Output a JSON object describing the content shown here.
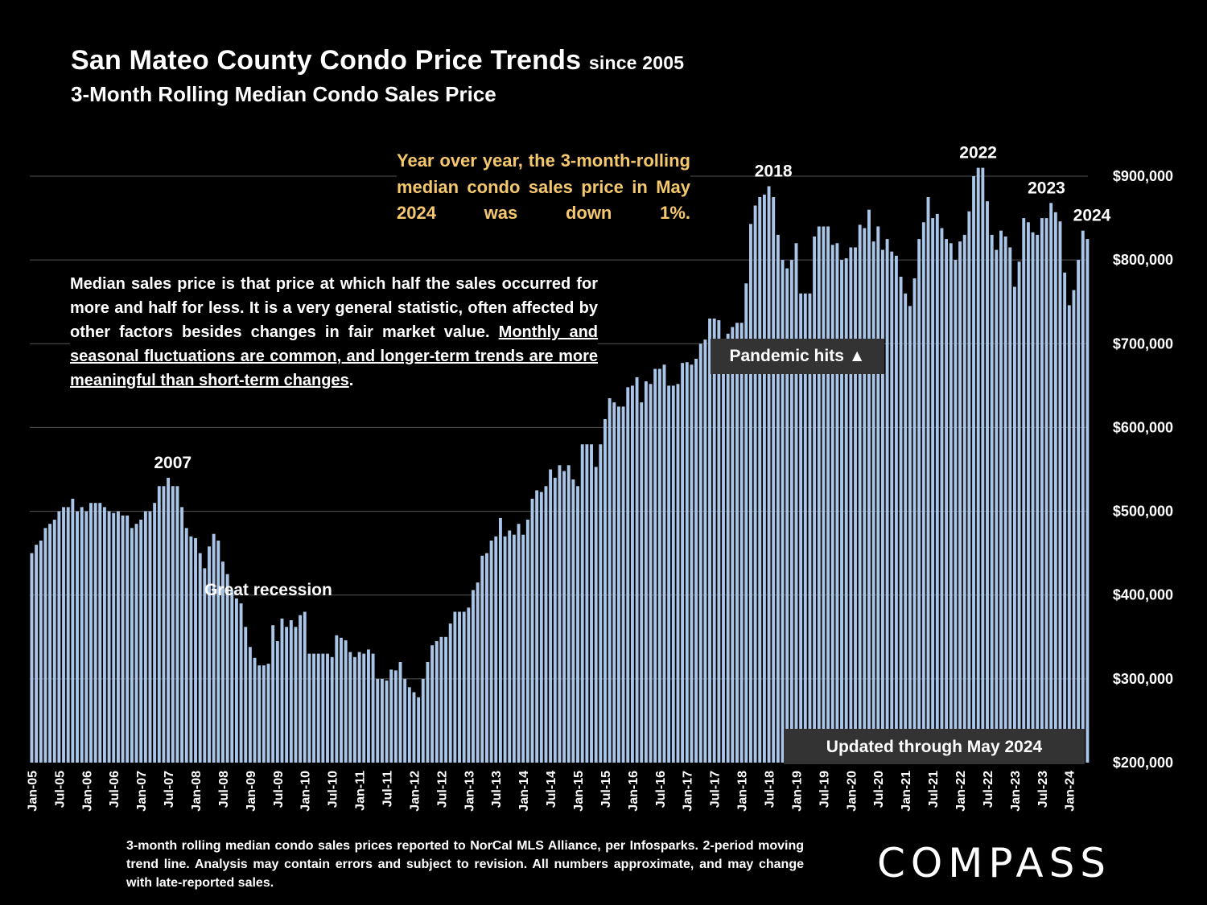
{
  "header": {
    "title": "San Mateo County Condo Price Trends",
    "title_suffix": "since 2005",
    "subtitle": "3-Month Rolling Median Condo Sales Price"
  },
  "notes": {
    "yoy": "Year over year, the 3-month-rolling median condo sales price in May 2024 was down 1%.",
    "median_plain": "Median sales price is that price at which half the sales occurred for more and half for less. It is a very general statistic, often affected by other factors besides changes in fair market value.",
    "median_underlined": "Monthly and seasonal fluctuations are common, and longer-term trends are more meaningful than short-term changes",
    "median_end": ".",
    "pandemic": "Pandemic hits ▲",
    "updated": "Updated through May 2024",
    "footnote": "3-month rolling median condo sales prices reported to NorCal MLS Alliance, per Infosparks. 2-period moving trend line. Analysis may contain errors and subject to revision. All numbers approximate, and may change with late-reported sales."
  },
  "brand": {
    "logo": "COMPASS"
  },
  "colors": {
    "bar": "#a9c6e8",
    "background": "#000000",
    "note": "#f5c86e",
    "box": "#333333"
  },
  "chart_data": {
    "type": "bar",
    "title": "3-Month Rolling Median Condo Sales Price",
    "ylim": [
      200000,
      900000
    ],
    "yticks": [
      {
        "v": 200000,
        "label": "$200,000"
      },
      {
        "v": 300000,
        "label": "$300,000"
      },
      {
        "v": 400000,
        "label": "$400,000"
      },
      {
        "v": 500000,
        "label": "$500,000"
      },
      {
        "v": 600000,
        "label": "$600,000"
      },
      {
        "v": 700000,
        "label": "$700,000"
      },
      {
        "v": 800000,
        "label": "$800,000"
      },
      {
        "v": 900000,
        "label": "$900,000"
      }
    ],
    "start_month": "Jan-05",
    "xtick_labels": [
      "Jan-05",
      "Jul-05",
      "Jan-06",
      "Jul-06",
      "Jan-07",
      "Jul-07",
      "Jan-08",
      "Jul-08",
      "Jan-09",
      "Jul-09",
      "Jan-10",
      "Jul-10",
      "Jan-11",
      "Jul-11",
      "Jan-12",
      "Jul-12",
      "Jan-13",
      "Jul-13",
      "Jan-14",
      "Jul-14",
      "Jan-15",
      "Jul-15",
      "Jan-16",
      "Jul-16",
      "Jan-17",
      "Jul-17",
      "Jan-18",
      "Jul-18",
      "Jan-19",
      "Jul-19",
      "Jan-20",
      "Jul-20",
      "Jan-21",
      "Jul-21",
      "Jan-22",
      "Jul-22",
      "Jan-23",
      "Jul-23",
      "Jan-24"
    ],
    "annotations": [
      {
        "label": "2007",
        "index": 31
      },
      {
        "label": "Great recession",
        "index": 52
      },
      {
        "label": "2018",
        "index": 163
      },
      {
        "label": "2022",
        "index": 208
      },
      {
        "label": "2023",
        "index": 223
      },
      {
        "label": "2024",
        "index": 233
      }
    ],
    "values": [
      450000,
      460000,
      465000,
      480000,
      485000,
      490000,
      500000,
      505000,
      505000,
      515000,
      500000,
      505000,
      500000,
      510000,
      510000,
      510000,
      505000,
      500000,
      498000,
      500000,
      495000,
      495000,
      480000,
      485000,
      490000,
      500000,
      500000,
      510000,
      530000,
      530000,
      540000,
      530000,
      530000,
      505000,
      480000,
      470000,
      468000,
      450000,
      432000,
      458000,
      473000,
      465000,
      440000,
      425000,
      405000,
      396000,
      390000,
      362000,
      338000,
      325000,
      316000,
      316000,
      318000,
      364000,
      345000,
      372000,
      362000,
      370000,
      362000,
      376000,
      380000,
      330000,
      330000,
      330000,
      330000,
      330000,
      326000,
      352000,
      349000,
      346000,
      332000,
      326000,
      332000,
      330000,
      335000,
      330000,
      300000,
      300000,
      298000,
      311000,
      310000,
      320000,
      300000,
      290000,
      284000,
      278000,
      300000,
      320000,
      340000,
      345000,
      350000,
      350000,
      366000,
      380000,
      380000,
      380000,
      385000,
      406000,
      415000,
      447000,
      450000,
      465000,
      470000,
      492000,
      470000,
      477000,
      472000,
      485000,
      472000,
      490000,
      515000,
      525000,
      523000,
      530000,
      550000,
      540000,
      555000,
      548000,
      555000,
      538000,
      530000,
      580000,
      580000,
      580000,
      553000,
      580000,
      610000,
      635000,
      630000,
      625000,
      625000,
      648000,
      650000,
      660000,
      630000,
      655000,
      652000,
      670000,
      670000,
      675000,
      650000,
      650000,
      652000,
      677000,
      678000,
      675000,
      682000,
      700000,
      705000,
      730000,
      730000,
      728000,
      670000,
      712000,
      720000,
      725000,
      725000,
      772000,
      843000,
      865000,
      875000,
      878000,
      888000,
      875000,
      830000,
      800000,
      790000,
      800000,
      820000,
      760000,
      760000,
      760000,
      828000,
      840000,
      840000,
      840000,
      818000,
      820000,
      800000,
      802000,
      815000,
      815000,
      842000,
      838000,
      860000,
      822000,
      840000,
      812000,
      825000,
      810000,
      805000,
      780000,
      760000,
      745000,
      778000,
      825000,
      845000,
      875000,
      850000,
      855000,
      838000,
      825000,
      820000,
      800000,
      822000,
      830000,
      858000,
      900000,
      910000,
      910000,
      870000,
      830000,
      812000,
      835000,
      828000,
      815000,
      768000,
      798000,
      850000,
      845000,
      833000,
      830000,
      850000,
      850000,
      868000,
      857000,
      846000,
      785000,
      746000,
      764000,
      800000,
      835000,
      825000
    ]
  }
}
